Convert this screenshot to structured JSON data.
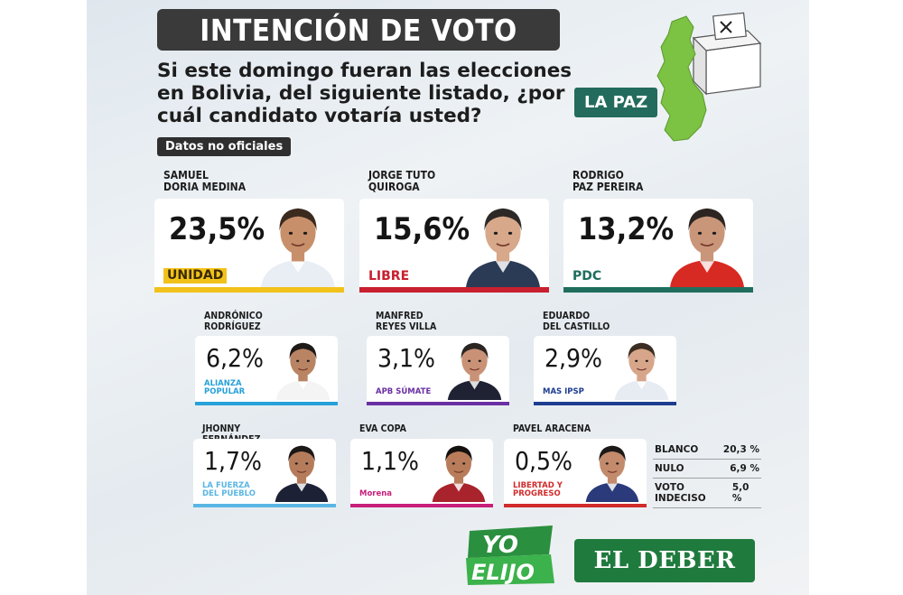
{
  "header": {
    "title": "INTENCIÓN DE VOTO",
    "question": "Si este domingo fueran las elecciones en Bolivia, del siguiente listado, ¿por cuál candidato votaría usted?",
    "badge": "Datos no oficiales",
    "region": "LA PAZ"
  },
  "chart_data": {
    "type": "bar",
    "title": "INTENCIÓN DE VOTO",
    "categories": [
      "SAMUEL DORIA MEDINA",
      "JORGE TUTO QUIROGA",
      "RODRIGO PAZ PEREIRA",
      "ANDRÓNICO RODRÍGUEZ",
      "MANFRED REYES VILLA",
      "EDUARDO DEL CASTILLO",
      "JHONNY FERNÁNDEZ",
      "EVA COPA",
      "PAVEL ARACENA"
    ],
    "values": [
      23.5,
      15.6,
      13.2,
      6.2,
      3.1,
      2.9,
      1.7,
      1.1,
      0.5
    ],
    "unit": "%",
    "others": [
      {
        "label": "BLANCO",
        "value": 20.3
      },
      {
        "label": "NULO",
        "value": 6.9
      },
      {
        "label": "VOTO INDECISO",
        "value": 5.0
      }
    ]
  },
  "candidates": [
    {
      "name1": "SAMUEL",
      "name2": "DORIA MEDINA",
      "pct": "23,5%",
      "party": "UNIDAD",
      "color": "#f2c21b",
      "skin": "#c8906a",
      "hair": "#3b2a1e",
      "shirt": "#e9eef5"
    },
    {
      "name1": "JORGE TUTO",
      "name2": "QUIROGA",
      "pct": "15,6%",
      "party": "LIBRE",
      "color": "#c8202f",
      "skin": "#d7a88a",
      "hair": "#2d2926",
      "shirt": "#2b3a55"
    },
    {
      "name1": "RODRIGO",
      "name2": "PAZ PEREIRA",
      "pct": "13,2%",
      "party": "PDC",
      "color": "#1f6e5d",
      "skin": "#c9967a",
      "hair": "#2c2522",
      "shirt": "#d72a22"
    },
    {
      "name1": "ANDRÓNICO",
      "name2": "RODRÍGUEZ",
      "pct": "6,2%",
      "party": "ALIANZA POPULAR",
      "color": "#27a1d9",
      "skin": "#b98463",
      "hair": "#1d1a18",
      "shirt": "#f4f4f4"
    },
    {
      "name1": "MANFRED",
      "name2": "REYES VILLA",
      "pct": "3,1%",
      "party": "APB SÚMATE",
      "color": "#6a2fa3",
      "skin": "#c99276",
      "hair": "#2b2522",
      "shirt": "#1e2233"
    },
    {
      "name1": "EDUARDO",
      "name2": "DEL CASTILLO",
      "pct": "2,9%",
      "party": "MAS IPSP",
      "color": "#1d3d8f",
      "skin": "#d7a68a",
      "hair": "#3c2d22",
      "shirt": "#e7ebf2"
    },
    {
      "name1": "JHONNY",
      "name2": "FERNÁNDEZ",
      "pct": "1,7%",
      "party": "LA FUERZA DEL PUEBLO",
      "color": "#5ab6e4",
      "skin": "#b57c5b",
      "hair": "#1b1816",
      "shirt": "#1c2136"
    },
    {
      "name1": "EVA COPA",
      "name2": "",
      "pct": "1,1%",
      "party": "Morena",
      "color": "#c81f7a",
      "skin": "#b97c5a",
      "hair": "#15110f",
      "shirt": "#a8232b"
    },
    {
      "name1": "PAVEL ARACENA",
      "name2": "",
      "pct": "0,5%",
      "party": "LIBERTAD Y PROGRESO",
      "color": "#d22b2b",
      "skin": "#c38a6c",
      "hair": "#1c1917",
      "shirt": "#2a3a7a"
    }
  ],
  "others": [
    {
      "label": "BLANCO",
      "value": "20,3 %"
    },
    {
      "label": "NULO",
      "value": "6,9 %"
    },
    {
      "label": "VOTO INDECISO",
      "value": "5,0 %"
    }
  ],
  "footer": {
    "yo": "YO",
    "elijo": "ELIJO",
    "brand": "EL DEBER"
  }
}
